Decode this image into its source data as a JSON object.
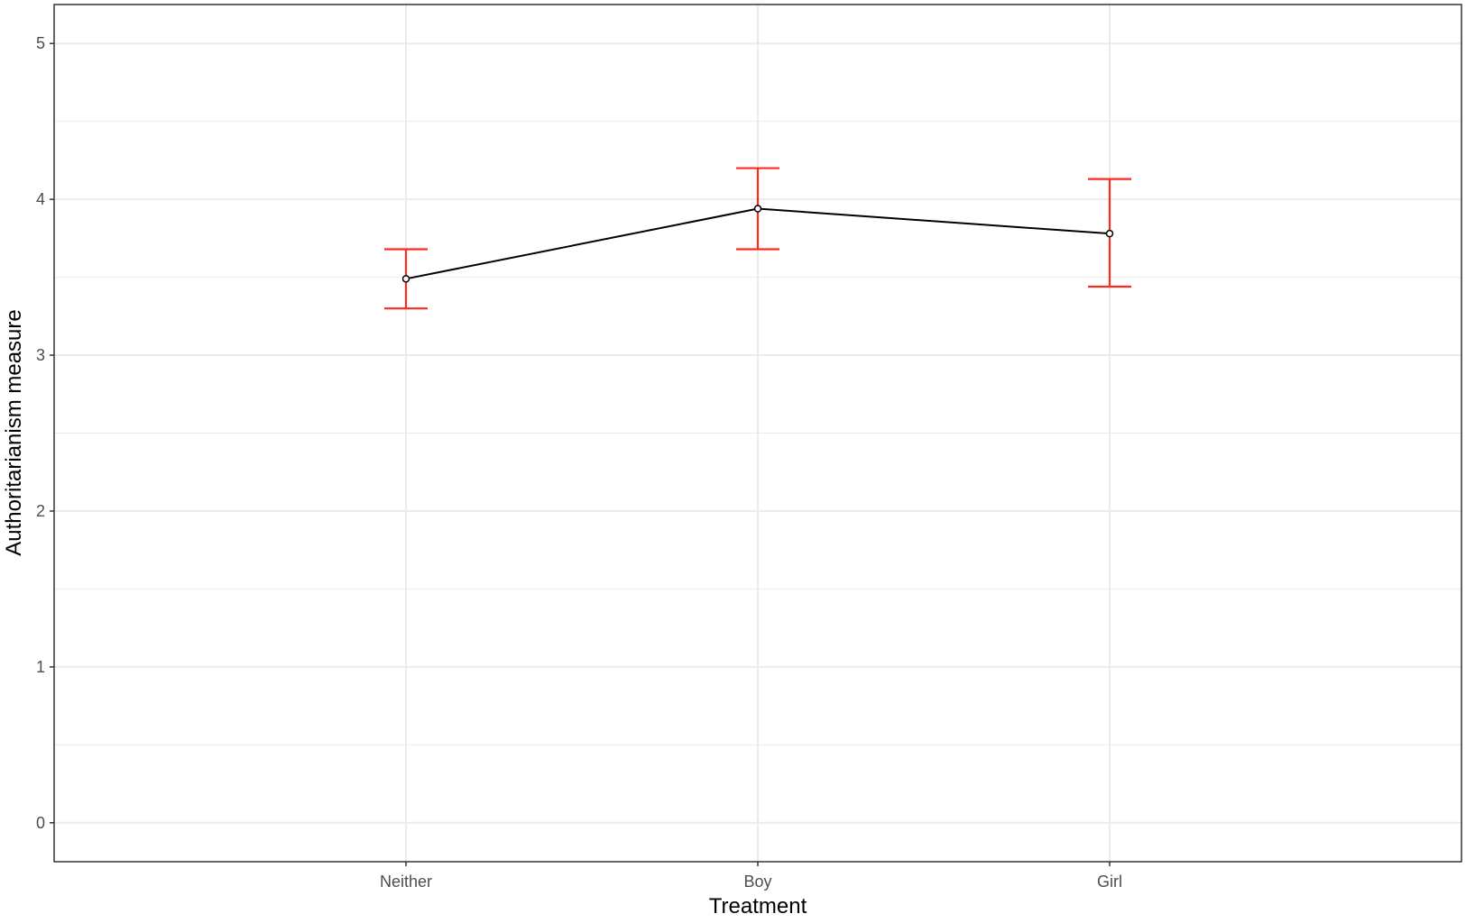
{
  "chart_data": {
    "type": "line",
    "categories": [
      "Neither",
      "Boy",
      "Girl"
    ],
    "series": [
      {
        "values": [
          3.49,
          3.94,
          3.78
        ],
        "error_low": [
          3.3,
          3.68,
          3.44
        ],
        "error_high": [
          3.68,
          4.2,
          4.13
        ]
      }
    ],
    "xlabel": "Treatment",
    "ylabel": "Authoritarianism measure",
    "ylim": [
      -0.25,
      5.25
    ],
    "yticks": [
      0,
      1,
      2,
      3,
      4,
      5
    ],
    "ytick_labels": [
      "0",
      "1",
      "2",
      "3",
      "4",
      "5"
    ],
    "grid": true,
    "legend": "none",
    "colors": {
      "line": "#000000",
      "point_fill": "#ffffff",
      "error_bar": "#ff2a1f",
      "grid": "#ebebeb",
      "panel_border": "#333333"
    }
  }
}
